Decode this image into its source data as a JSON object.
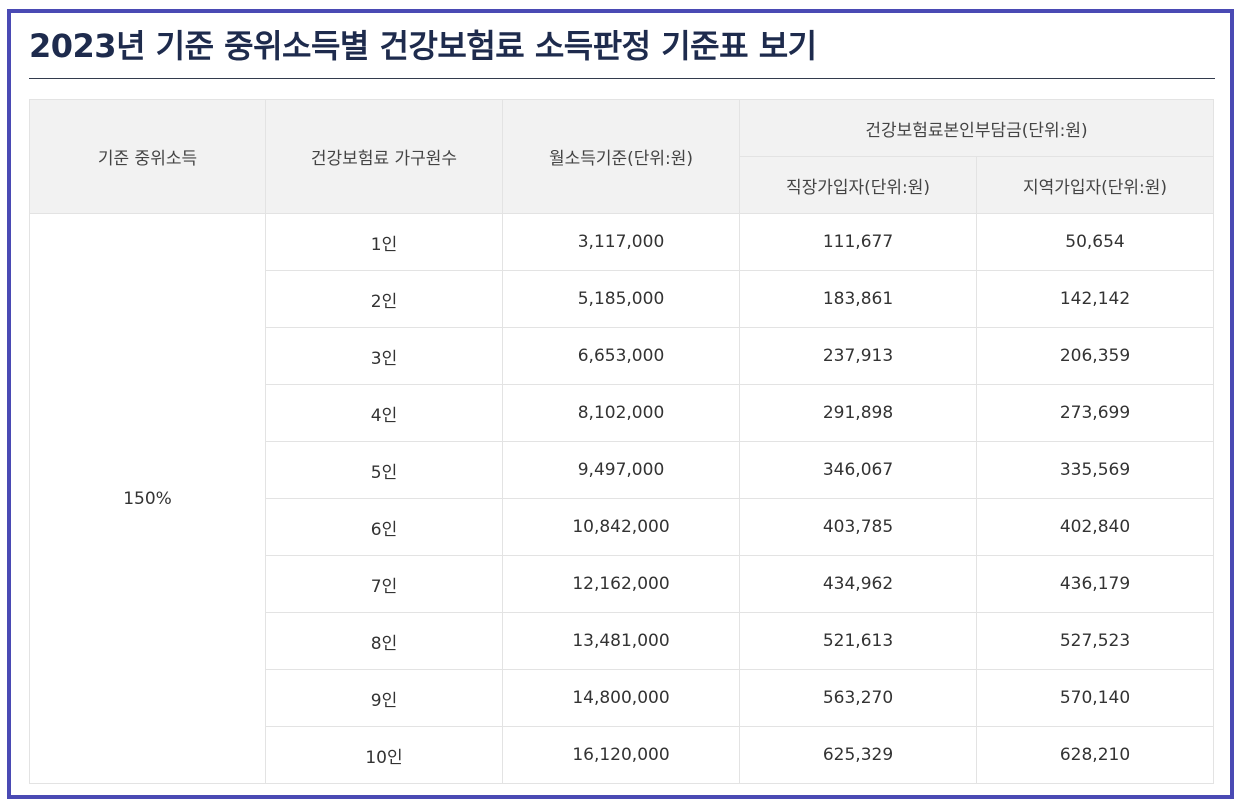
{
  "title": "2023년 기준 중위소득별 건강보험료 소득판정 기준표 보기",
  "table": {
    "headers": {
      "median_income": "기준 중위소득",
      "household": "건강보험료 가구원수",
      "monthly_income": "월소득기준(단위:원)",
      "premium_group": "건강보험료본인부담금(단위:원)",
      "workplace": "직장가입자(단위:원)",
      "regional": "지역가입자(단위:원)"
    },
    "median_value": "150%",
    "rows": [
      {
        "household": "1인",
        "monthly": "3,117,000",
        "workplace": "111,677",
        "regional": "50,654"
      },
      {
        "household": "2인",
        "monthly": "5,185,000",
        "workplace": "183,861",
        "regional": "142,142"
      },
      {
        "household": "3인",
        "monthly": "6,653,000",
        "workplace": "237,913",
        "regional": "206,359"
      },
      {
        "household": "4인",
        "monthly": "8,102,000",
        "workplace": "291,898",
        "regional": "273,699"
      },
      {
        "household": "5인",
        "monthly": "9,497,000",
        "workplace": "346,067",
        "regional": "335,569"
      },
      {
        "household": "6인",
        "monthly": "10,842,000",
        "workplace": "403,785",
        "regional": "402,840"
      },
      {
        "household": "7인",
        "monthly": "12,162,000",
        "workplace": "434,962",
        "regional": "436,179"
      },
      {
        "household": "8인",
        "monthly": "13,481,000",
        "workplace": "521,613",
        "regional": "527,523"
      },
      {
        "household": "9인",
        "monthly": "14,800,000",
        "workplace": "563,270",
        "regional": "570,140"
      },
      {
        "household": "10인",
        "monthly": "16,120,000",
        "workplace": "625,329",
        "regional": "628,210"
      }
    ]
  }
}
